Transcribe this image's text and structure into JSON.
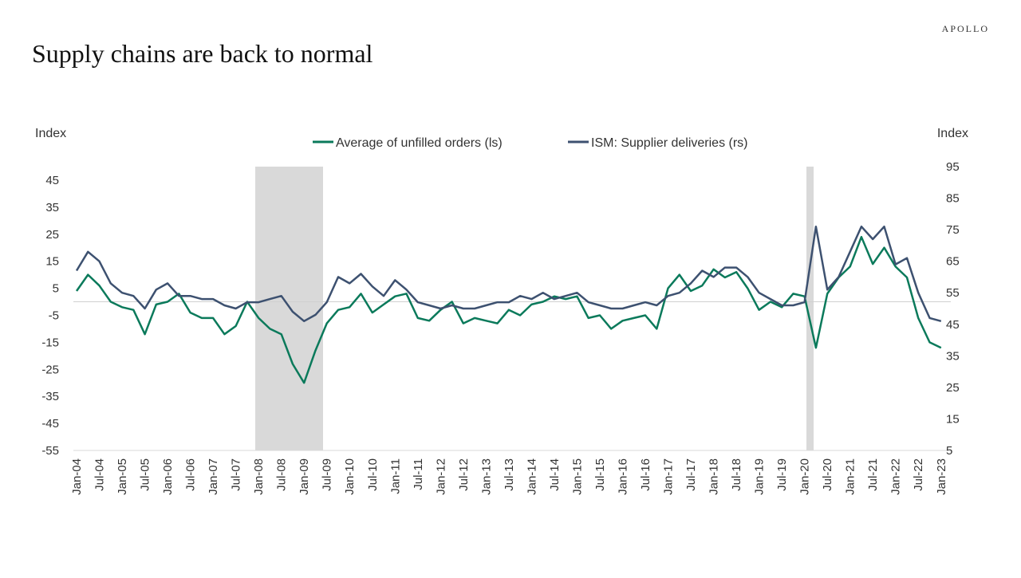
{
  "brand": "APOLLO",
  "chart_data": {
    "type": "line",
    "title": "Supply chains are back to normal",
    "y_label": "Index",
    "y2_label": "Index",
    "categories": [
      "Jan-04",
      null,
      "Jul-04",
      null,
      "Jan-05",
      null,
      "Jul-05",
      null,
      "Jan-06",
      null,
      "Jul-06",
      null,
      "Jan-07",
      null,
      "Jul-07",
      null,
      "Jan-08",
      null,
      "Jul-08",
      null,
      "Jan-09",
      null,
      "Jul-09",
      null,
      "Jan-10",
      null,
      "Jul-10",
      null,
      "Jan-11",
      null,
      "Jul-11",
      null,
      "Jan-12",
      null,
      "Jul-12",
      null,
      "Jan-13",
      null,
      "Jul-13",
      null,
      "Jan-14",
      null,
      "Jul-14",
      null,
      "Jan-15",
      null,
      "Jul-15",
      null,
      "Jan-16",
      null,
      "Jul-16",
      null,
      "Jan-17",
      null,
      "Jul-17",
      null,
      "Jan-18",
      null,
      "Jul-18",
      null,
      "Jan-19",
      null,
      "Jul-19",
      null,
      "Jan-20",
      null,
      "Jul-20",
      null,
      "Jan-21",
      null,
      "Jul-21",
      null,
      "Jan-22",
      null,
      "Jul-22",
      null,
      "Jan-23"
    ],
    "series": [
      {
        "name": "Average of unfilled orders (ls)",
        "color": "#0b7a5b",
        "axis": "y",
        "values": [
          4,
          10,
          6,
          0,
          -2,
          -3,
          -12,
          -1,
          0,
          3,
          -4,
          -6,
          -6,
          -12,
          -9,
          0,
          -6,
          -10,
          -12,
          -23,
          -30,
          -18,
          -8,
          -3,
          -2,
          3,
          -4,
          -1,
          2,
          3,
          -6,
          -7,
          -3,
          0,
          -8,
          -6,
          -7,
          -8,
          -3,
          -5,
          -1,
          0,
          2,
          1,
          2,
          -6,
          -5,
          -10,
          -7,
          -6,
          -5,
          -10,
          5,
          10,
          4,
          6,
          12,
          9,
          11,
          5,
          -3,
          0,
          -2,
          3,
          2,
          -17,
          3,
          9,
          13,
          24,
          14,
          20,
          13,
          9,
          -6,
          -15,
          -17
        ]
      },
      {
        "name": "ISM: Supplier deliveries (rs)",
        "color": "#3d5170",
        "axis": "y2",
        "values": [
          62,
          68,
          65,
          58,
          55,
          54,
          50,
          56,
          58,
          54,
          54,
          53,
          53,
          51,
          50,
          52,
          52,
          53,
          54,
          49,
          46,
          48,
          52,
          60,
          58,
          61,
          57,
          54,
          59,
          56,
          52,
          51,
          50,
          51,
          50,
          50,
          51,
          52,
          52,
          54,
          53,
          55,
          53,
          54,
          55,
          52,
          51,
          50,
          50,
          51,
          52,
          51,
          54,
          55,
          58,
          62,
          60,
          63,
          63,
          60,
          55,
          53,
          51,
          51,
          52,
          76,
          56,
          60,
          68,
          76,
          72,
          76,
          64,
          66,
          55,
          47,
          46
        ]
      }
    ],
    "ylim": [
      -55,
      50
    ],
    "yticks": [
      -55,
      -45,
      -35,
      -25,
      -15,
      -5,
      5,
      15,
      25,
      35,
      45
    ],
    "y2lim": [
      5,
      95
    ],
    "y2ticks": [
      5,
      15,
      25,
      35,
      45,
      55,
      65,
      75,
      85,
      95
    ],
    "legend": "top"
  }
}
